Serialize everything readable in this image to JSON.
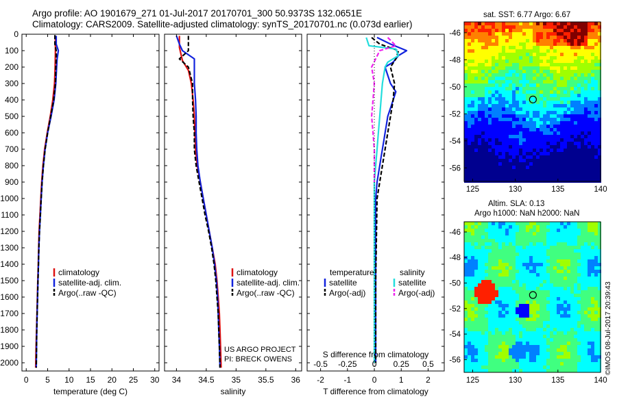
{
  "header": {
    "line1": "Argo profile: AO 1901679_271 01-Jul-2017 20170701_300 50.9373S 132.0651E",
    "line2": "Climatology: CARS2009. Satellite-adjusted climatology: synTS_20170701.nc (0.073d earlier)"
  },
  "colors": {
    "climatology": "#dd1111",
    "satellite": "#1122dd",
    "argo": "#000000",
    "satellite_salinity": "#22dddd",
    "argo_adj_salinity": "#ee22ee"
  },
  "maps": {
    "sst_title": "sat. SST: 6.77 Argo: 6.67",
    "sla_title": "Altim. SLA: 0.13",
    "sla_subtitle": "Argo h1000: NaN h2000: NaN",
    "lat_ticks": [
      "-46",
      "-48",
      "-50",
      "-52",
      "-54",
      "-56"
    ],
    "lon_ticks": [
      "125",
      "130",
      "135",
      "140"
    ],
    "argo_marker": {
      "lon": 132.07,
      "lat": -50.94
    },
    "credit": "©IMOS 08-Jul-2017 20:39:43"
  },
  "footer": {
    "project": "US ARGO PROJECT",
    "pi": "PI: BRECK OWENS"
  },
  "chart_data": [
    {
      "type": "line",
      "id": "temperature",
      "xlabel": "temperature (deg C)",
      "xlim": [
        -1,
        31
      ],
      "xticks": [
        0,
        5,
        10,
        15,
        20,
        25,
        30
      ],
      "ylim": [
        2050,
        0
      ],
      "yticks": [
        0,
        100,
        200,
        300,
        400,
        500,
        600,
        700,
        800,
        900,
        1000,
        1100,
        1200,
        1300,
        1400,
        1500,
        1600,
        1700,
        1800,
        1900,
        2000
      ],
      "legend": [
        "climatology",
        "satellite-adj. clim.",
        "Argo(..raw -QC)"
      ],
      "series": [
        {
          "name": "climatology",
          "color": "#dd1111",
          "points": [
            [
              6.8,
              10
            ],
            [
              6.8,
              100
            ],
            [
              6.75,
              200
            ],
            [
              6.6,
              300
            ],
            [
              6.2,
              400
            ],
            [
              5.6,
              500
            ],
            [
              4.9,
              600
            ],
            [
              4.3,
              700
            ],
            [
              3.9,
              800
            ],
            [
              3.6,
              900
            ],
            [
              3.4,
              1000
            ],
            [
              3.2,
              1100
            ],
            [
              3.0,
              1200
            ],
            [
              2.9,
              1300
            ],
            [
              2.8,
              1400
            ],
            [
              2.7,
              1500
            ],
            [
              2.6,
              1600
            ],
            [
              2.5,
              1700
            ],
            [
              2.4,
              1800
            ],
            [
              2.3,
              1900
            ],
            [
              2.2,
              2030
            ]
          ]
        },
        {
          "name": "satellite-adj. clim.",
          "color": "#1122dd",
          "points": [
            [
              7.0,
              10
            ],
            [
              7.0,
              60
            ],
            [
              7.5,
              100
            ],
            [
              7.2,
              150
            ],
            [
              7.1,
              200
            ],
            [
              6.9,
              300
            ],
            [
              6.5,
              400
            ],
            [
              5.8,
              500
            ],
            [
              5.0,
              600
            ],
            [
              4.4,
              700
            ],
            [
              4.0,
              800
            ],
            [
              3.7,
              900
            ],
            [
              3.5,
              1000
            ],
            [
              3.3,
              1100
            ],
            [
              3.1,
              1200
            ],
            [
              2.95,
              1300
            ],
            [
              2.85,
              1400
            ],
            [
              2.75,
              1500
            ],
            [
              2.65,
              1600
            ],
            [
              2.55,
              1700
            ],
            [
              2.45,
              1800
            ],
            [
              2.4,
              1900
            ],
            [
              2.35,
              2030
            ]
          ]
        },
        {
          "name": "Argo(..raw -QC)",
          "color": "#000000",
          "dashed": true,
          "points": [
            [
              6.7,
              5
            ],
            [
              6.7,
              60
            ],
            [
              7.0,
              100
            ],
            [
              7.0,
              150
            ],
            [
              6.9,
              200
            ],
            [
              6.8,
              300
            ],
            [
              6.4,
              400
            ],
            [
              5.7,
              500
            ],
            [
              5.0,
              600
            ],
            [
              4.4,
              700
            ],
            [
              4.0,
              800
            ],
            [
              3.7,
              900
            ],
            [
              3.5,
              1000
            ],
            [
              3.3,
              1100
            ],
            [
              3.1,
              1200
            ],
            [
              2.95,
              1300
            ],
            [
              2.85,
              1400
            ],
            [
              2.75,
              1500
            ],
            [
              2.65,
              1600
            ],
            [
              2.55,
              1700
            ],
            [
              2.45,
              1800
            ],
            [
              2.4,
              1900
            ],
            [
              2.35,
              2030
            ]
          ]
        }
      ]
    },
    {
      "type": "line",
      "id": "salinity",
      "xlabel": "salinity",
      "xlim": [
        33.8,
        36.1
      ],
      "xticks": [
        34,
        34.5,
        35,
        35.5,
        36
      ],
      "ylim": [
        2050,
        0
      ],
      "legend": [
        "climatology",
        "satellite-adj. clim.",
        "Argo(..raw -QC)"
      ],
      "series": [
        {
          "name": "climatology",
          "color": "#dd1111",
          "points": [
            [
              34.05,
              10
            ],
            [
              34.05,
              80
            ],
            [
              34.1,
              160
            ],
            [
              34.2,
              220
            ],
            [
              34.25,
              300
            ],
            [
              34.28,
              400
            ],
            [
              34.3,
              500
            ],
            [
              34.31,
              600
            ],
            [
              34.32,
              700
            ],
            [
              34.35,
              800
            ],
            [
              34.4,
              900
            ],
            [
              34.45,
              1000
            ],
            [
              34.5,
              1100
            ],
            [
              34.55,
              1200
            ],
            [
              34.6,
              1300
            ],
            [
              34.65,
              1400
            ],
            [
              34.68,
              1500
            ],
            [
              34.7,
              1600
            ],
            [
              34.72,
              1700
            ],
            [
              34.73,
              1800
            ],
            [
              34.74,
              1900
            ],
            [
              34.75,
              2030
            ]
          ]
        },
        {
          "name": "satellite-adj. clim.",
          "color": "#1122dd",
          "points": [
            [
              34.0,
              10
            ],
            [
              34.05,
              60
            ],
            [
              34.1,
              100
            ],
            [
              34.3,
              150
            ],
            [
              34.3,
              220
            ],
            [
              34.3,
              300
            ],
            [
              34.32,
              400
            ],
            [
              34.33,
              500
            ],
            [
              34.33,
              600
            ],
            [
              34.34,
              700
            ],
            [
              34.36,
              800
            ],
            [
              34.4,
              900
            ],
            [
              34.45,
              1000
            ],
            [
              34.5,
              1100
            ],
            [
              34.55,
              1200
            ],
            [
              34.6,
              1300
            ],
            [
              34.64,
              1400
            ],
            [
              34.67,
              1500
            ],
            [
              34.69,
              1600
            ],
            [
              34.7,
              1700
            ],
            [
              34.71,
              1800
            ],
            [
              34.72,
              1900
            ],
            [
              34.73,
              2030
            ]
          ]
        },
        {
          "name": "Argo(..raw -QC)",
          "color": "#000000",
          "dashed": true,
          "points": [
            [
              34.2,
              10
            ],
            [
              34.2,
              100
            ],
            [
              34.05,
              150
            ],
            [
              34.2,
              200
            ],
            [
              34.27,
              300
            ],
            [
              34.27,
              400
            ],
            [
              34.28,
              500
            ],
            [
              34.3,
              600
            ],
            [
              34.3,
              700
            ],
            [
              34.33,
              800
            ],
            [
              34.38,
              900
            ],
            [
              34.43,
              1000
            ],
            [
              34.48,
              1100
            ],
            [
              34.54,
              1200
            ],
            [
              34.59,
              1300
            ],
            [
              34.63,
              1400
            ],
            [
              34.66,
              1500
            ],
            [
              34.68,
              1600
            ],
            [
              34.7,
              1700
            ],
            [
              34.71,
              1800
            ],
            [
              34.72,
              1900
            ],
            [
              34.73,
              2030
            ]
          ]
        }
      ]
    },
    {
      "type": "line",
      "id": "difference",
      "xlabel": "T difference from climatology",
      "xlabel2": "S difference from climatology",
      "xlim": [
        -2.5,
        2.6
      ],
      "xticks": [
        -2,
        -1,
        0,
        1,
        2
      ],
      "xtick_labels": [
        "-2",
        "-1",
        "0",
        "1",
        "2"
      ],
      "sticks": [
        -0.5,
        -0.25,
        0,
        0.25,
        0.5
      ],
      "stick_labels": [
        "-0.5",
        "-0.25",
        "0",
        "0.25",
        "0.5"
      ],
      "ylim": [
        2050,
        0
      ],
      "legend_headers": [
        "temperature",
        "salinity"
      ],
      "legend": [
        "satellite",
        "Argo(-adj)",
        "satellite",
        "Argo(-adj)"
      ],
      "series": [
        {
          "name": "satellite",
          "color": "#1122dd",
          "points": [
            [
              0.1,
              20
            ],
            [
              0.6,
              60
            ],
            [
              1.2,
              100
            ],
            [
              0.9,
              130
            ],
            [
              0.7,
              170
            ],
            [
              0.4,
              200
            ],
            [
              0.5,
              250
            ],
            [
              0.6,
              300
            ],
            [
              0.8,
              350
            ],
            [
              0.7,
              400
            ],
            [
              0.6,
              450
            ],
            [
              0.5,
              500
            ],
            [
              0.45,
              550
            ],
            [
              0.4,
              600
            ],
            [
              0.35,
              650
            ],
            [
              0.3,
              700
            ],
            [
              0.25,
              750
            ],
            [
              0.2,
              800
            ],
            [
              0.1,
              900
            ],
            [
              0.05,
              1000
            ],
            [
              0.05,
              1500
            ],
            [
              0.05,
              2000
            ]
          ]
        },
        {
          "name": "Argo(-adj)",
          "color": "#000000",
          "dashed": true,
          "points": [
            [
              -0.1,
              20
            ],
            [
              0.2,
              60
            ],
            [
              0.9,
              100
            ],
            [
              0.8,
              150
            ],
            [
              0.6,
              200
            ],
            [
              0.75,
              300
            ],
            [
              0.7,
              400
            ],
            [
              0.6,
              500
            ],
            [
              0.5,
              600
            ],
            [
              0.4,
              700
            ],
            [
              0.3,
              800
            ],
            [
              0.2,
              900
            ],
            [
              0.1,
              1000
            ],
            [
              0.05,
              1500
            ],
            [
              0.05,
              2000
            ]
          ]
        },
        {
          "name": "satellite",
          "color": "#22dddd",
          "points": [
            [
              -0.3,
              20
            ],
            [
              -0.2,
              70
            ],
            [
              0.8,
              90
            ],
            [
              0.9,
              130
            ],
            [
              0.5,
              170
            ],
            [
              0.4,
              200
            ],
            [
              0.3,
              300
            ],
            [
              0.25,
              400
            ],
            [
              0.2,
              500
            ],
            [
              0.15,
              600
            ],
            [
              0.1,
              700
            ],
            [
              0.05,
              800
            ],
            [
              0.0,
              900
            ],
            [
              0.0,
              1000
            ],
            [
              0.0,
              2000
            ]
          ]
        },
        {
          "name": "Argo(-adj)",
          "color": "#ee22ee",
          "dashed": true,
          "points": [
            [
              0.5,
              20
            ],
            [
              0.8,
              70
            ],
            [
              0.2,
              100
            ],
            [
              -0.1,
              200
            ],
            [
              0.0,
              300
            ],
            [
              -0.05,
              400
            ],
            [
              -0.1,
              500
            ],
            [
              -0.05,
              600
            ],
            [
              0.0,
              700
            ],
            [
              0.0,
              800
            ],
            [
              0.0,
              900
            ]
          ]
        }
      ]
    }
  ]
}
